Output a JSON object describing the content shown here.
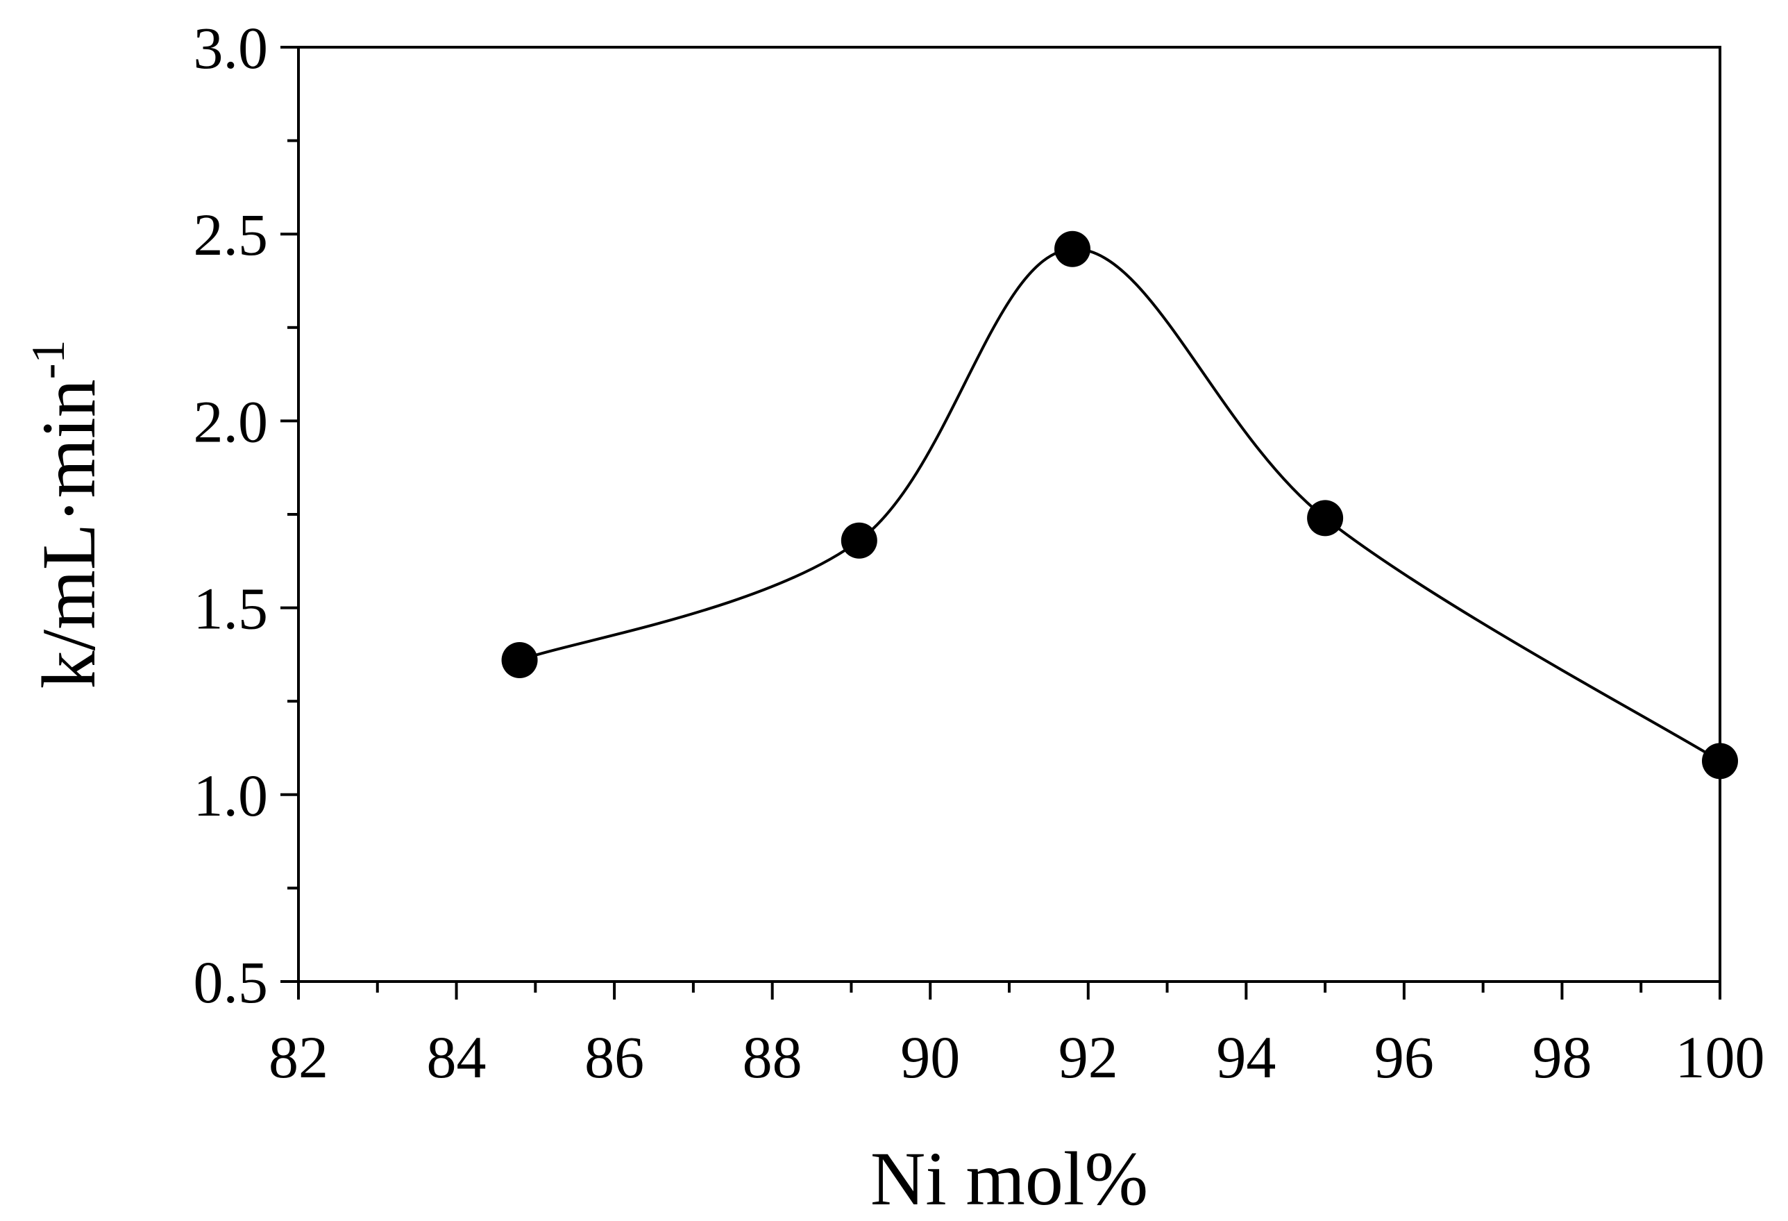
{
  "chart_data": {
    "type": "line",
    "title": "",
    "xlabel": "Ni mol%",
    "ylabel": {
      "main": "k/mL·min",
      "superscript": "-1"
    },
    "xlim": [
      82,
      100
    ],
    "ylim": [
      0.5,
      3.0
    ],
    "x_ticks": [
      82,
      84,
      86,
      88,
      90,
      92,
      94,
      96,
      98,
      100
    ],
    "x_tick_labels": [
      "82",
      "84",
      "86",
      "88",
      "90",
      "92",
      "94",
      "96",
      "98",
      "100"
    ],
    "y_ticks": [
      0.5,
      1.0,
      1.5,
      2.0,
      2.5,
      3.0
    ],
    "y_tick_labels": [
      "0.5",
      "1.0",
      "1.5",
      "2.0",
      "2.5",
      "3.0"
    ],
    "grid": false,
    "legend": "none",
    "series": [
      {
        "x": [
          84.8,
          89.1,
          91.8,
          95.0,
          100.0
        ],
        "y": [
          1.36,
          1.68,
          2.46,
          1.74,
          1.09
        ],
        "marker": "filled-circle",
        "line": "smooth",
        "color": "#000000"
      }
    ]
  }
}
